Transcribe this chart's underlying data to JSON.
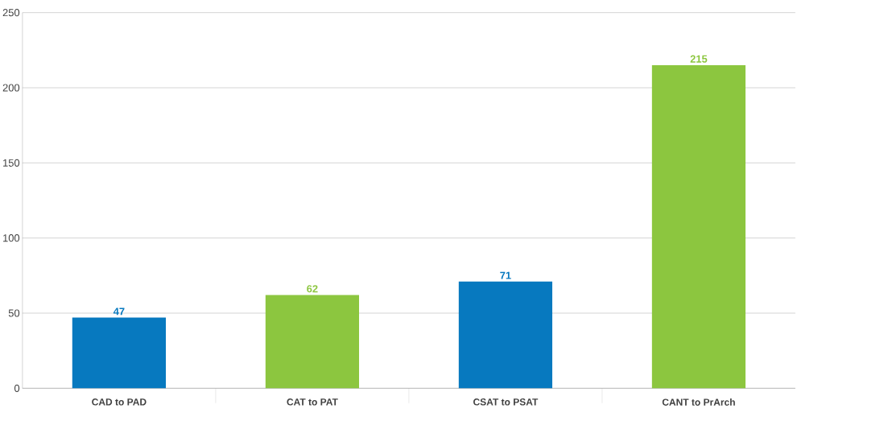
{
  "chart_data": {
    "type": "bar",
    "categories": [
      "CAD to PAD",
      "CAT to PAT",
      "CSAT to PSAT",
      "CANT to PrArch"
    ],
    "values": [
      47,
      62,
      71,
      215
    ],
    "colors": [
      "#0779bf",
      "#8cc63f",
      "#0779bf",
      "#8cc63f"
    ],
    "ylim": [
      0,
      250
    ],
    "yticks": [
      0,
      50,
      100,
      150,
      200,
      250
    ],
    "grid": "y",
    "data_labels": true
  }
}
